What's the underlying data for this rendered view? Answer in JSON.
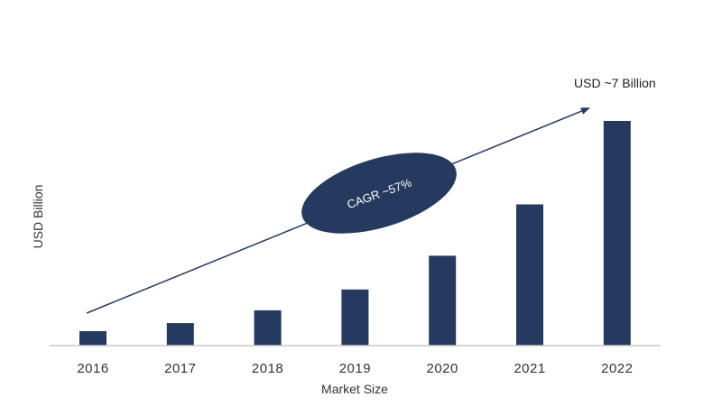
{
  "chart_data": {
    "type": "bar",
    "categories": [
      "2016",
      "2017",
      "2018",
      "2019",
      "2020",
      "2021",
      "2022"
    ],
    "values": [
      0.45,
      0.7,
      1.1,
      1.75,
      2.8,
      4.4,
      7.0
    ],
    "xlabel": "Market Size",
    "ylabel": "USD Billion",
    "ylim": [
      0,
      7
    ],
    "grid": false,
    "legend": "none",
    "bar_color": "#253a5e",
    "annotations": {
      "end_value": "USD ~7 Billion",
      "cagr": "CAGR ~57%"
    }
  }
}
